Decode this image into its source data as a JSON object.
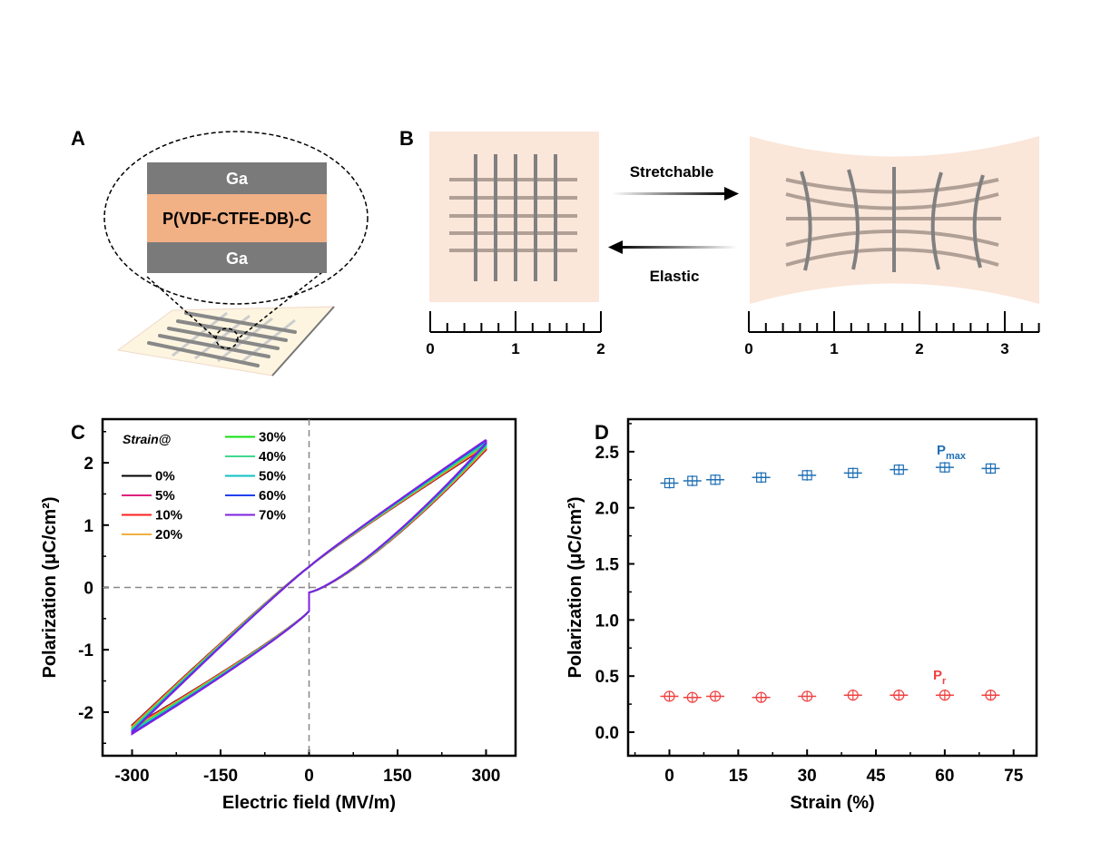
{
  "panels": {
    "a": "A",
    "b": "B",
    "c": "C",
    "d": "D"
  },
  "panel_a": {
    "top_layer": "Ga",
    "middle_layer": "P(VDF-CTFE-DB)-C",
    "bottom_layer": "Ga"
  },
  "panel_b": {
    "forward_label": "Stretchable",
    "backward_label": "Elastic",
    "ruler_left_ticks": [
      "0",
      "1",
      "2"
    ],
    "ruler_right_ticks": [
      "0",
      "1",
      "2",
      "3"
    ]
  },
  "chart_data": [
    {
      "type": "line",
      "panel": "C",
      "xlabel": "Electric field (MV/m)",
      "ylabel": "Polarization (μC/cm²)",
      "xlim": [
        -350,
        350
      ],
      "ylim": [
        -2.7,
        2.7
      ],
      "xticks": [
        "-300",
        "-150",
        "0",
        "150",
        "300"
      ],
      "xtick_values": [
        -300,
        -150,
        0,
        150,
        300
      ],
      "yticks": [
        "-2",
        "-1",
        "0",
        "1",
        "2"
      ],
      "ytick_values": [
        -2,
        -1,
        0,
        1,
        2
      ],
      "legend_title": "Strain@",
      "legend_placement": "top-left",
      "reference_lines": {
        "x": 0,
        "y": 0
      },
      "loop_params": {
        "Pr_plus": 0.33,
        "P_minus_at_zero": -0.38,
        "P_lower_at_zero": -0.08
      },
      "series": [
        {
          "name": "0%",
          "color": "#000000",
          "pmax": 2.26
        },
        {
          "name": "5%",
          "color": "#e0207f",
          "pmax": 2.27
        },
        {
          "name": "10%",
          "color": "#ff2020",
          "pmax": 2.27
        },
        {
          "name": "20%",
          "color": "#f0b040",
          "pmax": 2.29
        },
        {
          "name": "30%",
          "color": "#10e010",
          "pmax": 2.31
        },
        {
          "name": "40%",
          "color": "#40d890",
          "pmax": 2.32
        },
        {
          "name": "50%",
          "color": "#10c0c0",
          "pmax": 2.34
        },
        {
          "name": "60%",
          "color": "#2040f0",
          "pmax": 2.36
        },
        {
          "name": "70%",
          "color": "#8020e0",
          "pmax": 2.37
        }
      ]
    },
    {
      "type": "scatter",
      "panel": "D",
      "xlabel": "Strain (%)",
      "ylabel": "Polarization (μC/cm²)",
      "xlim": [
        -9,
        80
      ],
      "ylim": [
        -0.21,
        2.79
      ],
      "xticks": [
        "0",
        "15",
        "30",
        "45",
        "60",
        "75"
      ],
      "xtick_values": [
        0,
        15,
        30,
        45,
        60,
        75
      ],
      "yticks": [
        "0.0",
        "0.5",
        "1.0",
        "1.5",
        "2.0",
        "2.5"
      ],
      "ytick_values": [
        0,
        0.5,
        1.0,
        1.5,
        2.0,
        2.5
      ],
      "x": [
        0,
        5,
        10,
        20,
        30,
        40,
        50,
        60,
        70
      ],
      "series": [
        {
          "name": "Pmax",
          "label_main": "P",
          "label_sub": "max",
          "color": "#1f6fb4",
          "marker": "square-cross",
          "values": [
            2.22,
            2.24,
            2.25,
            2.27,
            2.29,
            2.31,
            2.34,
            2.36,
            2.35
          ]
        },
        {
          "name": "Pr",
          "label_main": "P",
          "label_sub": "r",
          "color": "#f04040",
          "marker": "circle-cross",
          "values": [
            0.32,
            0.31,
            0.32,
            0.31,
            0.32,
            0.33,
            0.33,
            0.33,
            0.33
          ]
        }
      ]
    }
  ]
}
